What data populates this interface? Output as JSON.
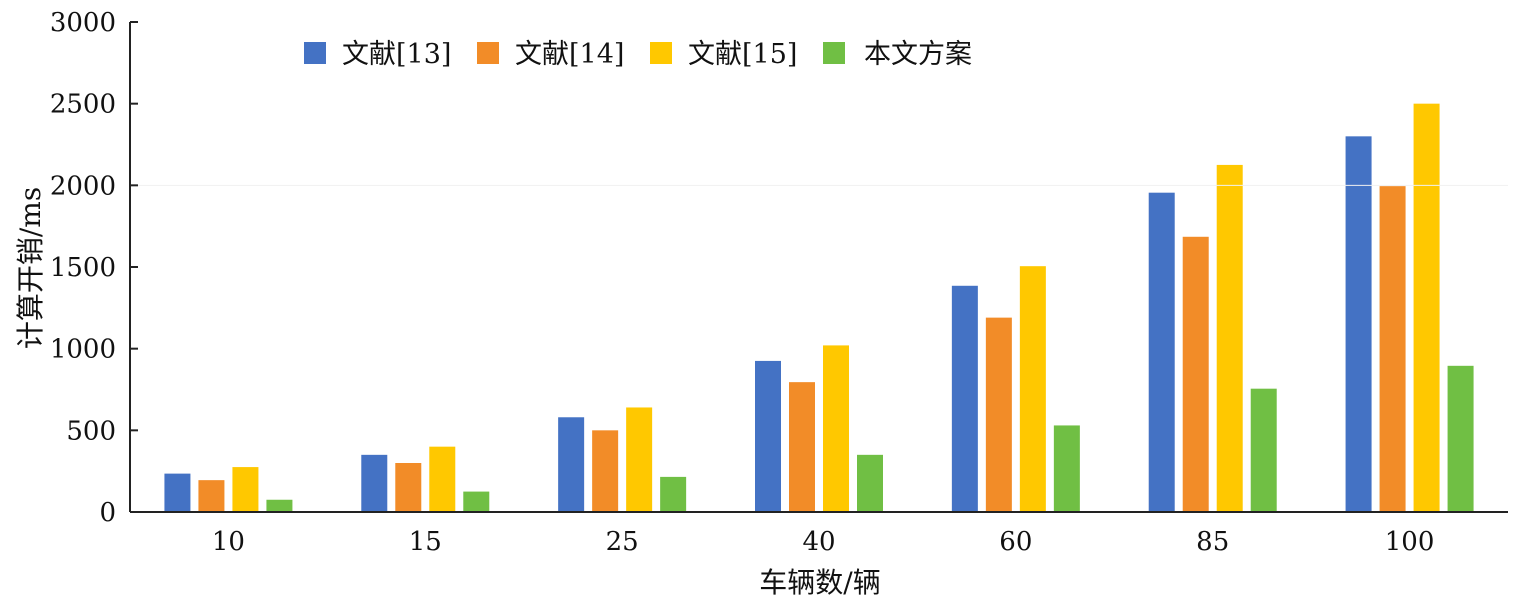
{
  "chart_data": {
    "type": "bar",
    "title": "",
    "xlabel": "车辆数/辆",
    "ylabel": "计算开销/ms",
    "categories": [
      "10",
      "15",
      "25",
      "40",
      "60",
      "85",
      "100"
    ],
    "ylim": [
      0,
      3000
    ],
    "yticks": [
      0,
      500,
      1000,
      1500,
      2000,
      2500,
      3000
    ],
    "grid": false,
    "legend_position": "top",
    "series": [
      {
        "name": "文献[13]",
        "color": "#4472C4",
        "values": [
          235,
          350,
          580,
          925,
          1385,
          1955,
          2300
        ]
      },
      {
        "name": "文献[14]",
        "color": "#F28C28",
        "values": [
          195,
          300,
          500,
          795,
          1190,
          1685,
          1995
        ]
      },
      {
        "name": "文献[15]",
        "color": "#FFC800",
        "values": [
          275,
          400,
          640,
          1020,
          1505,
          2125,
          2500
        ]
      },
      {
        "name": "本文方案",
        "color": "#70BF44",
        "values": [
          75,
          125,
          215,
          350,
          530,
          755,
          895
        ]
      }
    ]
  }
}
